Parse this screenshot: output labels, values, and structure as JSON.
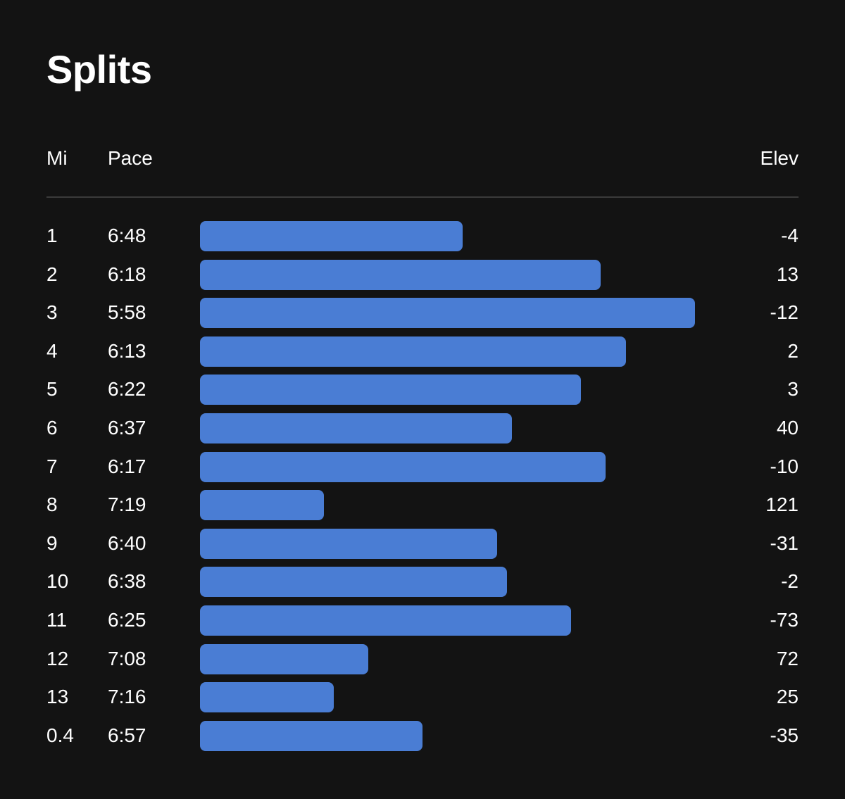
{
  "header": {
    "title": "Splits"
  },
  "columns": {
    "mi": "Mi",
    "pace": "Pace",
    "elev": "Elev"
  },
  "colors": {
    "background": "#131313",
    "bar": "#4a7dd4",
    "divider": "#3a3a3a",
    "text": "#ffffff"
  },
  "chart_data": {
    "type": "bar",
    "orientation": "horizontal",
    "title": "Splits",
    "categories": [
      "1",
      "2",
      "3",
      "4",
      "5",
      "6",
      "7",
      "8",
      "9",
      "10",
      "11",
      "12",
      "13",
      "0.4"
    ],
    "pace_labels": [
      "6:48",
      "6:18",
      "5:58",
      "6:13",
      "6:22",
      "6:37",
      "6:17",
      "7:19",
      "6:40",
      "6:38",
      "6:25",
      "7:08",
      "7:16",
      "6:57"
    ],
    "elevation": [
      "-4",
      "13",
      "-12",
      "2",
      "3",
      "40",
      "-10",
      "121",
      "-31",
      "-2",
      "-73",
      "72",
      "25",
      "-35"
    ],
    "relative_values": [
      0.53,
      0.81,
      1.0,
      0.86,
      0.77,
      0.63,
      0.82,
      0.25,
      0.6,
      0.62,
      0.75,
      0.34,
      0.27,
      0.45
    ],
    "grid": false,
    "legend": "none"
  }
}
